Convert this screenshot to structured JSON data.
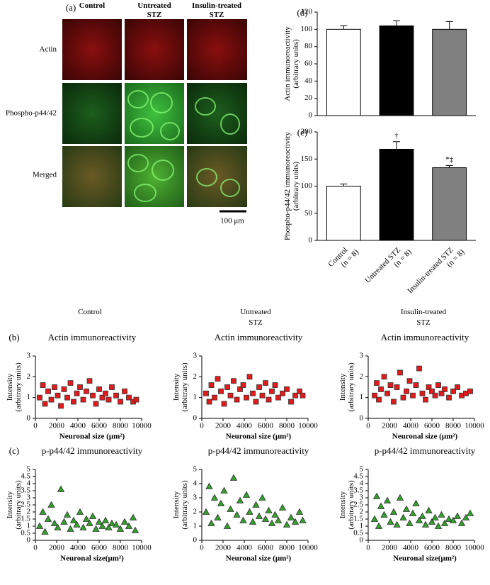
{
  "panel_a": {
    "label": "(a)",
    "columns": [
      [
        "Control"
      ],
      [
        "Untreated",
        "STZ"
      ],
      [
        "Insulin-treated",
        "STZ"
      ]
    ],
    "rows": [
      "Actin",
      "Phospho-p44/42",
      "Merged"
    ],
    "scale_bar": "100 μm"
  },
  "scatter_columns": [
    [
      "Control"
    ],
    [
      "Untreated",
      "STZ"
    ],
    [
      "Insulin-treated",
      "STZ"
    ]
  ],
  "chart_data": [
    {
      "type": "bar",
      "panel_label": "(d)",
      "y_label": [
        "Actin immunoreactivity",
        "(arbitrary units)"
      ],
      "values": [
        100,
        104,
        100
      ],
      "errors": [
        4,
        6,
        9
      ],
      "colors": [
        "#ffffff",
        "#000000",
        "#808080"
      ],
      "ylim": [
        0,
        120
      ],
      "yticks": [
        0,
        20,
        40,
        60,
        80,
        100,
        120
      ]
    },
    {
      "type": "bar",
      "panel_label": "(e)",
      "y_label": [
        "Phospho-p44/42 immunoreactivity",
        "(arbitrary units)"
      ],
      "categories": [
        [
          "Control",
          "(n = 8)"
        ],
        [
          "Untreated STZ",
          "(n = 8)"
        ],
        [
          "Insulin-treated STZ",
          "(n = 8)"
        ]
      ],
      "values": [
        100,
        168,
        134
      ],
      "errors": [
        4,
        14,
        4
      ],
      "value_labels": [
        null,
        "†",
        "*‡"
      ],
      "colors": [
        "#ffffff",
        "#000000",
        "#808080"
      ],
      "ylim": [
        0,
        200
      ],
      "yticks": [
        0,
        50,
        100,
        150,
        200
      ]
    },
    {
      "type": "scatter",
      "panel_label": "(b)",
      "title": "Actin immunoreactivity",
      "x_label": "Neuronal size (μm²)",
      "y_label": [
        "Intensity",
        "(arbitrary units)"
      ],
      "marker": "square",
      "color": "#e31a1c",
      "x": [
        400,
        700,
        900,
        1200,
        1500,
        1800,
        2100,
        2400,
        2700,
        3000,
        3300,
        3600,
        3900,
        4200,
        4500,
        4800,
        5100,
        5400,
        5700,
        6000,
        6300,
        6600,
        6900,
        7200,
        7600,
        8000,
        8400,
        8800,
        9200,
        9500
      ],
      "values": [
        1.0,
        1.6,
        0.7,
        1.3,
        0.9,
        1.5,
        1.1,
        0.6,
        1.4,
        1.0,
        1.7,
        0.8,
        1.2,
        1.5,
        0.9,
        1.3,
        1.8,
        1.1,
        0.7,
        1.4,
        1.0,
        1.2,
        0.9,
        1.5,
        1.1,
        0.8,
        1.3,
        1.0,
        0.8,
        0.9
      ],
      "xlim": [
        0,
        10000
      ],
      "xticks": [
        0,
        2000,
        4000,
        6000,
        8000,
        10000
      ],
      "ylim": [
        0,
        3
      ],
      "yticks": [
        0,
        1,
        2,
        3
      ]
    },
    {
      "type": "scatter",
      "title": "Actin immunoreactivity",
      "x_label": "Neuronal size (μm²)",
      "y_label": [
        "Intensity",
        "(arbitrary units)"
      ],
      "marker": "square",
      "color": "#e31a1c",
      "x": [
        400,
        700,
        900,
        1200,
        1500,
        1800,
        2100,
        2400,
        2700,
        3000,
        3300,
        3600,
        3900,
        4200,
        4500,
        4800,
        5100,
        5400,
        5700,
        6000,
        6300,
        6600,
        6900,
        7200,
        7600,
        8000,
        8400,
        8800,
        9200,
        9500
      ],
      "values": [
        1.2,
        0.8,
        1.6,
        1.0,
        1.9,
        1.3,
        0.7,
        1.5,
        1.1,
        1.8,
        0.9,
        1.4,
        1.6,
        1.0,
        2.0,
        1.2,
        0.8,
        1.5,
        1.1,
        1.7,
        0.9,
        1.3,
        1.6,
        1.0,
        1.2,
        1.4,
        0.8,
        1.1,
        1.3,
        1.1
      ],
      "xlim": [
        0,
        10000
      ],
      "xticks": [
        0,
        2000,
        4000,
        6000,
        8000,
        10000
      ],
      "ylim": [
        0,
        3
      ],
      "yticks": [
        0,
        1,
        2,
        3
      ]
    },
    {
      "type": "scatter",
      "title": "Actin immunoreactivity",
      "x_label": "Neuronal size (μm²)",
      "y_label": [
        "Intensity",
        "(arbitrary units)"
      ],
      "marker": "square",
      "color": "#e31a1c",
      "x": [
        600,
        800,
        1000,
        1200,
        1500,
        1800,
        2100,
        2400,
        2700,
        3000,
        3300,
        3600,
        3900,
        4200,
        4500,
        4800,
        5100,
        5400,
        5700,
        6000,
        6300,
        6600,
        6900,
        7200,
        7600,
        8000,
        8400,
        8800,
        9200,
        9600
      ],
      "values": [
        1.1,
        1.7,
        0.9,
        1.4,
        2.0,
        1.2,
        1.6,
        0.8,
        1.5,
        2.2,
        1.0,
        1.3,
        1.8,
        1.1,
        1.6,
        2.4,
        1.2,
        0.9,
        1.5,
        1.3,
        1.1,
        1.6,
        1.2,
        1.4,
        1.0,
        1.3,
        1.5,
        1.1,
        1.2,
        1.3
      ],
      "xlim": [
        0,
        10000
      ],
      "xticks": [
        0,
        2000,
        4000,
        6000,
        8000,
        10000
      ],
      "ylim": [
        0,
        3
      ],
      "yticks": [
        0,
        1,
        2,
        3
      ]
    },
    {
      "type": "scatter",
      "panel_label": "(c)",
      "title": "p-p44/42 immunoreactivity",
      "x_label": "Neuronal size(μm²)",
      "y_label": [
        "Intensity",
        "(arbitrary units)"
      ],
      "marker": "triangle",
      "color": "#33a02c",
      "x": [
        400,
        700,
        900,
        1200,
        1500,
        1800,
        2100,
        2400,
        2700,
        3000,
        3300,
        3600,
        3900,
        4200,
        4500,
        4800,
        5100,
        5400,
        5700,
        6000,
        6300,
        6600,
        6900,
        7200,
        7600,
        8000,
        8400,
        8800,
        9200,
        9400
      ],
      "values": [
        1.0,
        2.0,
        0.6,
        1.5,
        2.5,
        1.2,
        0.9,
        3.6,
        1.3,
        1.8,
        0.8,
        1.4,
        1.1,
        2.0,
        0.9,
        1.5,
        1.2,
        1.7,
        0.8,
        1.3,
        1.0,
        1.4,
        0.9,
        1.2,
        1.1,
        0.8,
        1.3,
        1.0,
        1.6,
        0.7
      ],
      "xlim": [
        0,
        10000
      ],
      "xticks": [
        0,
        2000,
        4000,
        6000,
        8000,
        10000
      ],
      "ylim": [
        0,
        5
      ],
      "yticks": [
        0,
        0.5,
        1,
        1.5,
        2,
        2.5,
        3,
        3.5,
        4,
        4.5,
        5
      ]
    },
    {
      "type": "scatter",
      "title": "p-p44/42 immunoreactivity",
      "x_label": "Neuronal size (μm²)",
      "y_label": [
        "Intensity",
        "(arbitrary units)"
      ],
      "marker": "triangle",
      "color": "#33a02c",
      "x": [
        400,
        700,
        900,
        1200,
        1500,
        1800,
        2100,
        2400,
        2700,
        3300,
        3600,
        3900,
        4200,
        4500,
        4800,
        5100,
        5400,
        5700,
        6000,
        6300,
        6600,
        6900,
        7200,
        7600,
        8000,
        8400,
        8800,
        9200,
        9500,
        3000
      ],
      "values": [
        2.0,
        3.8,
        1.2,
        3.0,
        1.6,
        2.6,
        3.5,
        1.0,
        2.2,
        1.8,
        2.8,
        1.4,
        3.2,
        2.0,
        1.3,
        2.5,
        1.7,
        3.0,
        1.5,
        2.1,
        1.2,
        1.8,
        1.4,
        2.3,
        1.1,
        1.6,
        1.3,
        2.0,
        1.4,
        4.4
      ],
      "xlim": [
        0,
        10000
      ],
      "xticks": [
        0,
        2000,
        4000,
        6000,
        8000,
        10000
      ],
      "ylim": [
        0,
        5
      ],
      "yticks": [
        0,
        1,
        2,
        3,
        4,
        5
      ]
    },
    {
      "type": "scatter",
      "title": "p-p44/42 immunoreactivity",
      "x_label": "Neuronal size(μm²)",
      "y_label": [
        "Intensity",
        "(arbitrary units)"
      ],
      "marker": "triangle",
      "color": "#33a02c",
      "x": [
        600,
        800,
        1000,
        1200,
        1500,
        1800,
        2100,
        2400,
        2700,
        3000,
        3300,
        3600,
        3900,
        4200,
        4500,
        4800,
        5100,
        5400,
        5700,
        6000,
        6300,
        6600,
        6900,
        7200,
        7600,
        8000,
        8400,
        8800,
        9200,
        9600
      ],
      "values": [
        1.5,
        3.1,
        1.0,
        2.4,
        1.8,
        2.8,
        1.3,
        2.0,
        1.1,
        3.0,
        1.6,
        2.2,
        1.2,
        1.9,
        2.6,
        1.4,
        1.7,
        1.1,
        2.1,
        1.3,
        1.6,
        1.0,
        1.8,
        1.2,
        1.5,
        1.4,
        1.7,
        1.2,
        1.6,
        1.9
      ],
      "xlim": [
        0,
        10000
      ],
      "xticks": [
        0,
        2000,
        4000,
        6000,
        8000,
        10000
      ],
      "ylim": [
        0,
        5
      ],
      "yticks": [
        0,
        0.5,
        1,
        1.5,
        2,
        2.5,
        3,
        3.5,
        4,
        4.5,
        5
      ]
    }
  ]
}
